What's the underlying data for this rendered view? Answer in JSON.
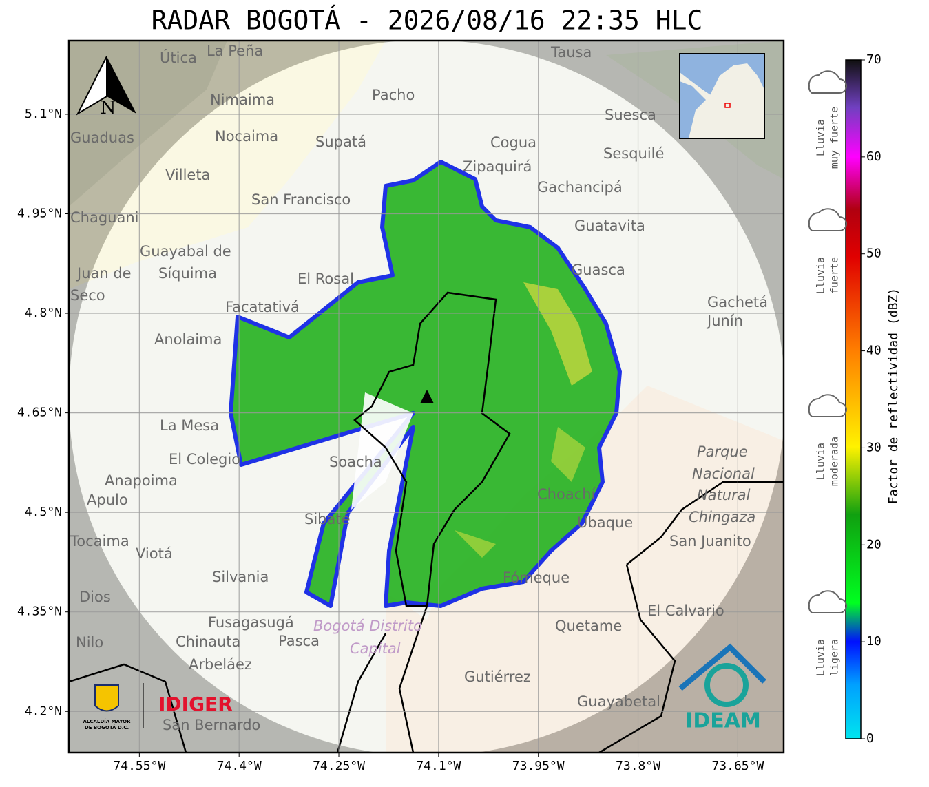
{
  "title": "RADAR BOGOTÁ - 2026/08/16 22:35 HLC",
  "map": {
    "xlim": [
      -74.656,
      -73.581
    ],
    "ylim": [
      4.138,
      5.211
    ],
    "lon_ticks": [
      {
        "value": -74.55,
        "label": "74.55°W"
      },
      {
        "value": -74.4,
        "label": "74.4°W"
      },
      {
        "value": -74.25,
        "label": "74.25°W"
      },
      {
        "value": -74.1,
        "label": "74.1°W"
      },
      {
        "value": -73.95,
        "label": "73.95°W"
      },
      {
        "value": -73.8,
        "label": "73.8°W"
      },
      {
        "value": -73.65,
        "label": "73.65°W"
      }
    ],
    "lat_ticks": [
      {
        "value": 5.1,
        "label": "5.1°N"
      },
      {
        "value": 4.95,
        "label": "4.95°N"
      },
      {
        "value": 4.8,
        "label": "4.8°N"
      },
      {
        "value": 4.65,
        "label": "4.65°N"
      },
      {
        "value": 4.5,
        "label": "4.5°N"
      },
      {
        "value": 4.35,
        "label": "4.35°N"
      },
      {
        "value": 4.2,
        "label": "4.2°N"
      }
    ],
    "north": "N"
  },
  "colorbar": {
    "label": "Factor de reflectividad (dBZ)",
    "lim": [
      0,
      70
    ],
    "ticks": [
      0,
      10,
      20,
      30,
      40,
      50,
      60,
      70
    ]
  },
  "categories": [
    [
      "Lluvia",
      "muy fuerte"
    ],
    [
      "Lluvia",
      "fuerte"
    ],
    [
      "Lluvia",
      "moderada"
    ],
    [
      "Lluvia",
      "ligera"
    ]
  ],
  "places": [
    "Útica",
    "La Peña",
    "Tausa",
    "Pacho",
    "Nimaima",
    "Suesca",
    "Guaduas",
    "Nocaima",
    "Supatá",
    "Cogua",
    "Sesquilé",
    "Zipaquirá",
    "Villeta",
    "Gachancipá",
    "San Francisco",
    "Chaguani",
    "Guatavita",
    "Guayabal de",
    "Síquima",
    "Juan de",
    "Guasca",
    "El Rosal",
    "Seco",
    "Gachetá",
    "Junín",
    "Facatativá",
    "Anolaima",
    "La Mesa",
    "El Colegio",
    "Soacha",
    "Anapoima",
    "Apulo",
    "Parque",
    "Nacional",
    "Natural",
    "Chingaza",
    "San Juanito",
    "Sibaté",
    "Viotá",
    "Silvania",
    "Ubaque",
    "Choachí",
    "Fómeque",
    "Dios",
    "El Calvario",
    "Fusagasugá",
    "Bogotá Distrito",
    "Capital",
    "Quetame",
    "Nilo",
    "Chinauta",
    "Pasca",
    "Arbeláez",
    "Gutiérrez",
    "Guayabetal",
    "San Bernardo",
    "Tocaima"
  ],
  "logos": {
    "alcaldia": [
      "ALCALDÍA MAYOR",
      "DE BOGOTÁ D.C."
    ],
    "idiger": "IDIGER",
    "ideam": "IDEAM"
  }
}
